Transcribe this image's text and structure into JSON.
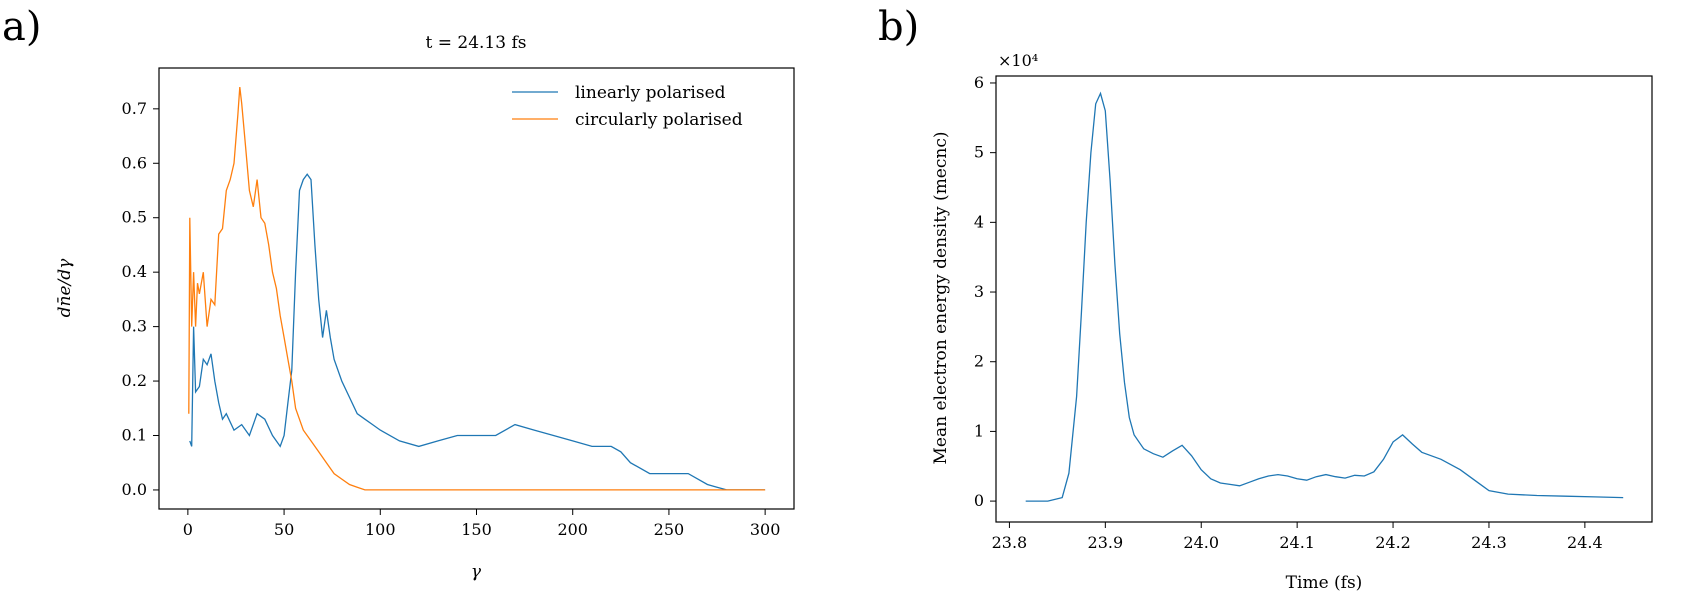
{
  "panels": {
    "a": {
      "label": "a)"
    },
    "b": {
      "label": "b)"
    }
  },
  "chart_data": [
    {
      "type": "line",
      "panel": "a",
      "title": "t = 24.13 fs",
      "xlabel": "γ",
      "ylabel": "dn̄e/dγ",
      "xlim": [
        -15,
        315
      ],
      "ylim": [
        -0.035,
        0.775
      ],
      "xticks": [
        0,
        50,
        100,
        150,
        200,
        250,
        300
      ],
      "yticks": [
        0.0,
        0.1,
        0.2,
        0.3,
        0.4,
        0.5,
        0.6,
        0.7
      ],
      "xtick_labels": [
        "0",
        "50",
        "100",
        "150",
        "200",
        "250",
        "300"
      ],
      "ytick_labels": [
        "0.0",
        "0.1",
        "0.2",
        "0.3",
        "0.4",
        "0.5",
        "0.6",
        "0.7"
      ],
      "grid": false,
      "legend": "top-right",
      "series": [
        {
          "name": "linearly polarised",
          "color": "#1f77b4",
          "x": [
            1,
            2,
            3,
            4,
            6,
            8,
            10,
            12,
            14,
            16,
            18,
            20,
            24,
            28,
            32,
            36,
            40,
            44,
            48,
            50,
            52,
            54,
            56,
            58,
            60,
            62,
            64,
            66,
            68,
            70,
            72,
            74,
            76,
            80,
            84,
            88,
            92,
            96,
            100,
            110,
            120,
            130,
            140,
            150,
            160,
            170,
            180,
            190,
            200,
            210,
            220,
            225,
            230,
            240,
            250,
            260,
            270,
            275,
            280,
            290,
            300
          ],
          "y": [
            0.09,
            0.08,
            0.3,
            0.18,
            0.19,
            0.24,
            0.23,
            0.25,
            0.2,
            0.16,
            0.13,
            0.14,
            0.11,
            0.12,
            0.1,
            0.14,
            0.13,
            0.1,
            0.08,
            0.1,
            0.16,
            0.22,
            0.4,
            0.55,
            0.57,
            0.58,
            0.57,
            0.45,
            0.35,
            0.28,
            0.33,
            0.28,
            0.24,
            0.2,
            0.17,
            0.14,
            0.13,
            0.12,
            0.11,
            0.09,
            0.08,
            0.09,
            0.1,
            0.1,
            0.1,
            0.12,
            0.11,
            0.1,
            0.09,
            0.08,
            0.08,
            0.07,
            0.05,
            0.03,
            0.03,
            0.03,
            0.01,
            0.005,
            0.0,
            0.0,
            0.0
          ]
        },
        {
          "name": "circularly polarised",
          "color": "#ff7f0e",
          "x": [
            0.5,
            1,
            2,
            3,
            4,
            5,
            6,
            8,
            10,
            12,
            14,
            16,
            18,
            20,
            22,
            24,
            26,
            27,
            28,
            30,
            32,
            34,
            36,
            38,
            40,
            42,
            44,
            46,
            48,
            50,
            52,
            54,
            56,
            60,
            64,
            68,
            72,
            76,
            80,
            84,
            88,
            92,
            100,
            150,
            200,
            250,
            300
          ],
          "y": [
            0.14,
            0.5,
            0.3,
            0.4,
            0.3,
            0.38,
            0.36,
            0.4,
            0.3,
            0.35,
            0.34,
            0.47,
            0.48,
            0.55,
            0.57,
            0.6,
            0.69,
            0.74,
            0.71,
            0.63,
            0.55,
            0.52,
            0.57,
            0.5,
            0.49,
            0.45,
            0.4,
            0.37,
            0.32,
            0.28,
            0.24,
            0.2,
            0.15,
            0.11,
            0.09,
            0.07,
            0.05,
            0.03,
            0.02,
            0.01,
            0.005,
            0.0,
            0.0,
            0.0,
            0.0,
            0.0,
            0.0
          ]
        }
      ]
    },
    {
      "type": "line",
      "panel": "b",
      "title": "",
      "xlabel": "Time (fs)",
      "ylabel": "Mean electron energy density (mecnc)",
      "y_multiplier": "×10⁴",
      "xlim": [
        23.786,
        24.47
      ],
      "ylim": [
        -0.3,
        6.1
      ],
      "xticks": [
        23.8,
        23.9,
        24.0,
        24.1,
        24.2,
        24.3,
        24.4
      ],
      "yticks": [
        0,
        1,
        2,
        3,
        4,
        5,
        6
      ],
      "xtick_labels": [
        "23.8",
        "23.9",
        "24.0",
        "24.1",
        "24.2",
        "24.3",
        "24.4"
      ],
      "ytick_labels": [
        "0",
        "1",
        "2",
        "3",
        "4",
        "5",
        "6"
      ],
      "grid": false,
      "series": [
        {
          "color": "#1f77b4",
          "x": [
            23.817,
            23.84,
            23.855,
            23.862,
            23.87,
            23.875,
            23.88,
            23.885,
            23.89,
            23.895,
            23.9,
            23.905,
            23.91,
            23.915,
            23.92,
            23.925,
            23.93,
            23.94,
            23.95,
            23.96,
            23.97,
            23.98,
            23.99,
            24.0,
            24.01,
            24.02,
            24.03,
            24.04,
            24.05,
            24.06,
            24.07,
            24.08,
            24.09,
            24.1,
            24.11,
            24.12,
            24.13,
            24.14,
            24.15,
            24.16,
            24.17,
            24.18,
            24.19,
            24.2,
            24.21,
            24.22,
            24.23,
            24.25,
            24.27,
            24.29,
            24.3,
            24.32,
            24.35,
            24.38,
            24.41,
            24.44
          ],
          "y": [
            0.0,
            0.0,
            0.05,
            0.4,
            1.5,
            2.7,
            4.0,
            5.0,
            5.7,
            5.85,
            5.6,
            4.6,
            3.4,
            2.4,
            1.7,
            1.2,
            0.95,
            0.75,
            0.68,
            0.63,
            0.72,
            0.8,
            0.65,
            0.45,
            0.32,
            0.26,
            0.24,
            0.22,
            0.27,
            0.32,
            0.36,
            0.38,
            0.36,
            0.32,
            0.3,
            0.35,
            0.38,
            0.35,
            0.33,
            0.37,
            0.36,
            0.42,
            0.6,
            0.85,
            0.95,
            0.82,
            0.7,
            0.6,
            0.45,
            0.25,
            0.15,
            0.1,
            0.08,
            0.07,
            0.06,
            0.05
          ]
        }
      ]
    }
  ]
}
